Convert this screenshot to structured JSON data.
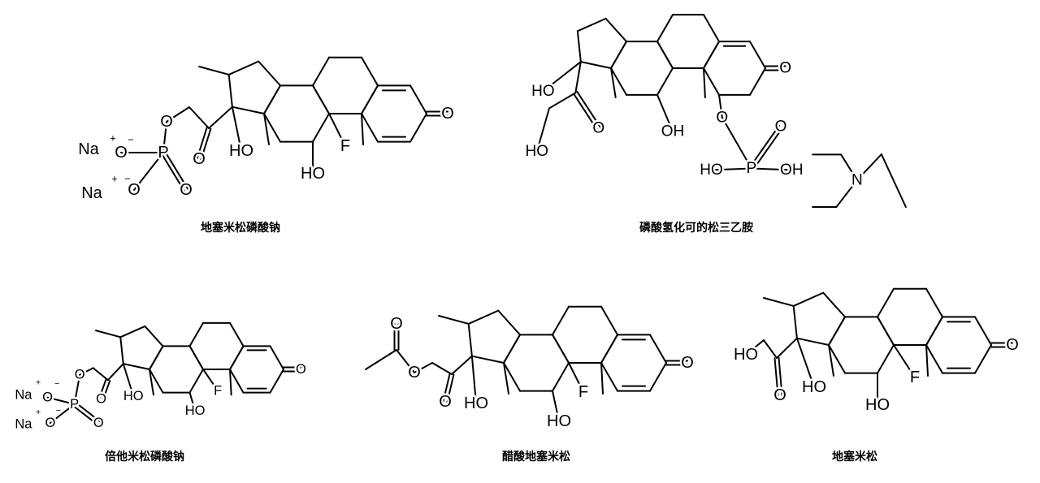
{
  "molecules": [
    {
      "name": "地塞米松磷酸钠",
      "labels": [
        "Na",
        "+",
        "O",
        "−",
        "P",
        "O",
        "Na",
        "+",
        "−",
        "O",
        "O",
        "O",
        "HO",
        "F",
        "HO",
        "O"
      ]
    },
    {
      "name": "磷酸氢化可的松三乙胺",
      "labels": [
        "HO",
        "O",
        "HO",
        "OH",
        "O",
        "P",
        "O",
        "HO",
        "OH",
        "O",
        "N"
      ]
    },
    {
      "name": "倍他米松磷酸钠",
      "labels": [
        "Na",
        "+",
        "−",
        "O",
        "Na",
        "+",
        "O",
        "−",
        "P",
        "O",
        "O",
        "O",
        "HO",
        "F",
        "HO",
        "O"
      ]
    },
    {
      "name": "醋酸地塞米松",
      "labels": [
        "O",
        "O",
        "O",
        "HO",
        "F",
        "HO",
        "O"
      ]
    },
    {
      "name": "地塞米松",
      "labels": [
        "HO",
        "O",
        "HO",
        "F",
        "HO",
        "O"
      ]
    }
  ]
}
